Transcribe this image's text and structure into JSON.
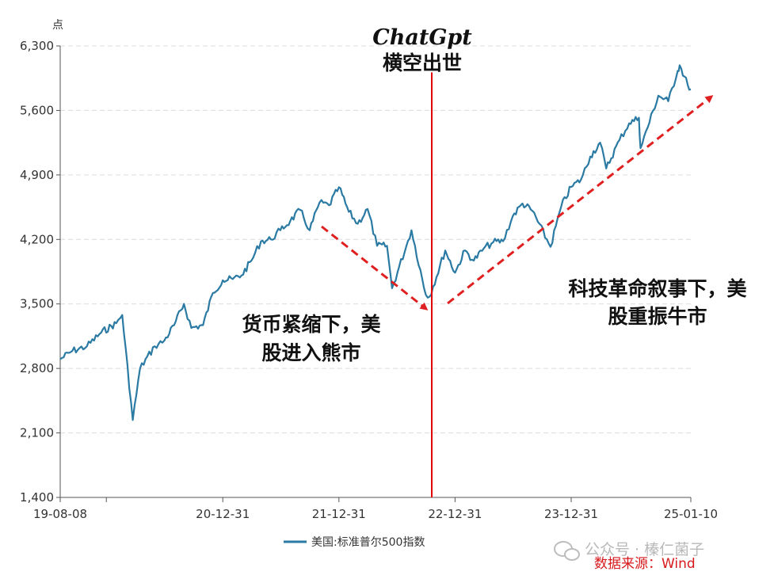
{
  "chart_data": {
    "type": "line",
    "unit": "点",
    "ylim": [
      1400,
      6300
    ],
    "yticks": [
      "6,300",
      "5,600",
      "4,900",
      "4,200",
      "3,500",
      "2,800",
      "2,100",
      "1,400"
    ],
    "xtick_labels": [
      "19-08-08",
      "20-12-31",
      "21-12-31",
      "22-12-31",
      "23-12-31",
      "25-01-10"
    ],
    "grid": true,
    "legend_position": "bottom",
    "series": [
      {
        "name": "美国:标准普尔500指数",
        "color": "#2a7aa3",
        "x": [
          "19-08-08",
          "19-09-15",
          "19-10-31",
          "19-12-15",
          "20-01-31",
          "20-02-19",
          "20-03-23",
          "20-04-15",
          "20-05-31",
          "20-06-30",
          "20-07-31",
          "20-08-31",
          "20-09-23",
          "20-10-30",
          "20-11-30",
          "20-12-31",
          "21-01-31",
          "21-02-28",
          "21-03-31",
          "21-04-30",
          "21-05-31",
          "21-06-30",
          "21-07-31",
          "21-08-31",
          "21-09-30",
          "21-10-31",
          "21-11-30",
          "21-12-31",
          "22-01-31",
          "22-02-28",
          "22-03-31",
          "22-04-30",
          "22-05-31",
          "22-06-16",
          "22-07-31",
          "22-08-16",
          "22-09-30",
          "22-10-12",
          "22-11-30",
          "22-12-31",
          "23-01-31",
          "23-02-28",
          "23-03-31",
          "23-04-30",
          "23-05-31",
          "23-06-30",
          "23-07-31",
          "23-08-31",
          "23-10-27",
          "23-11-30",
          "23-12-31",
          "24-01-31",
          "24-02-29",
          "24-03-31",
          "24-04-19",
          "24-05-31",
          "24-06-30",
          "24-07-31",
          "24-08-05",
          "24-09-30",
          "24-10-31",
          "24-11-30",
          "24-12-06",
          "24-12-31",
          "25-01-10"
        ],
        "values": [
          2900,
          2990,
          3040,
          3190,
          3290,
          3380,
          2240,
          2800,
          3040,
          3100,
          3270,
          3500,
          3240,
          3270,
          3620,
          3756,
          3770,
          3810,
          3970,
          4180,
          4200,
          4300,
          4400,
          4520,
          4300,
          4600,
          4570,
          4766,
          4500,
          4370,
          4530,
          4130,
          4130,
          3670,
          4130,
          4300,
          3600,
          3580,
          4080,
          3839,
          4080,
          3970,
          4100,
          4170,
          4180,
          4450,
          4590,
          4510,
          4120,
          4560,
          4770,
          4850,
          5100,
          5250,
          4970,
          5280,
          5460,
          5520,
          5190,
          5760,
          5700,
          6030,
          6090,
          5880,
          5830
        ],
        "x_events": [
          {
            "label": "货币紧缩下，美股进入熊市",
            "from": "22-01-03",
            "to": "22-10-12"
          },
          {
            "label": "科技革命叙事下，美股重振牛市",
            "from": "22-10-12",
            "to": "25-01-10"
          }
        ]
      }
    ]
  },
  "annotations": {
    "event_title": "ChatGpt",
    "event_subtitle": "横空出世",
    "bear_line1": "货币紧缩下，美",
    "bear_line2": "股进入熊市",
    "bull_line1": "科技革命叙事下，美",
    "bull_line2": "股重振牛市",
    "event_line_color": "#e00000",
    "arrow_color": "#e02020"
  },
  "watermark": {
    "text": "公众号 · 榛仁菌子",
    "icon": "wechat-icon"
  },
  "source": "数据来源：Wind"
}
